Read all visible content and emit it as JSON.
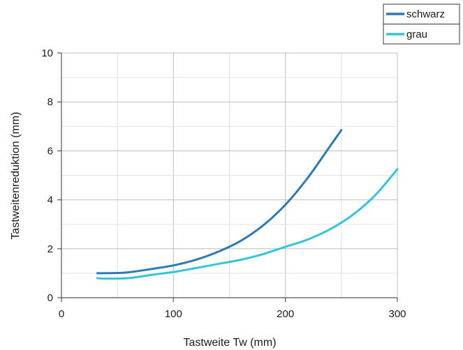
{
  "chart_data": {
    "type": "line",
    "xlabel": "Tastweite Tw (mm)",
    "ylabel": "Tastweitenreduktion (mm)",
    "xlim": [
      0,
      300
    ],
    "ylim": [
      0,
      10
    ],
    "x_ticks": [
      0,
      100,
      200,
      300
    ],
    "y_ticks": [
      0,
      2,
      4,
      6,
      8,
      10
    ],
    "x_tick_labels": [
      "0",
      "100",
      "200",
      "300"
    ],
    "y_tick_labels": [
      "0",
      "2",
      "4",
      "6",
      "8",
      "10"
    ],
    "grid": true,
    "legend_position": "top-right",
    "series": [
      {
        "name": "schwarz",
        "color": "#2a7ab8",
        "x": [
          32,
          50,
          60,
          80,
          100,
          120,
          140,
          160,
          180,
          200,
          220,
          240,
          250
        ],
        "y": [
          1.0,
          1.01,
          1.04,
          1.17,
          1.32,
          1.55,
          1.88,
          2.32,
          2.95,
          3.8,
          4.9,
          6.2,
          6.85
        ]
      },
      {
        "name": "grau",
        "color": "#33c4dc",
        "x": [
          32,
          40,
          60,
          80,
          100,
          120,
          140,
          160,
          180,
          200,
          220,
          240,
          260,
          280,
          300
        ],
        "y": [
          0.8,
          0.78,
          0.8,
          0.93,
          1.05,
          1.21,
          1.38,
          1.55,
          1.78,
          2.08,
          2.38,
          2.8,
          3.38,
          4.18,
          5.25
        ]
      }
    ]
  }
}
